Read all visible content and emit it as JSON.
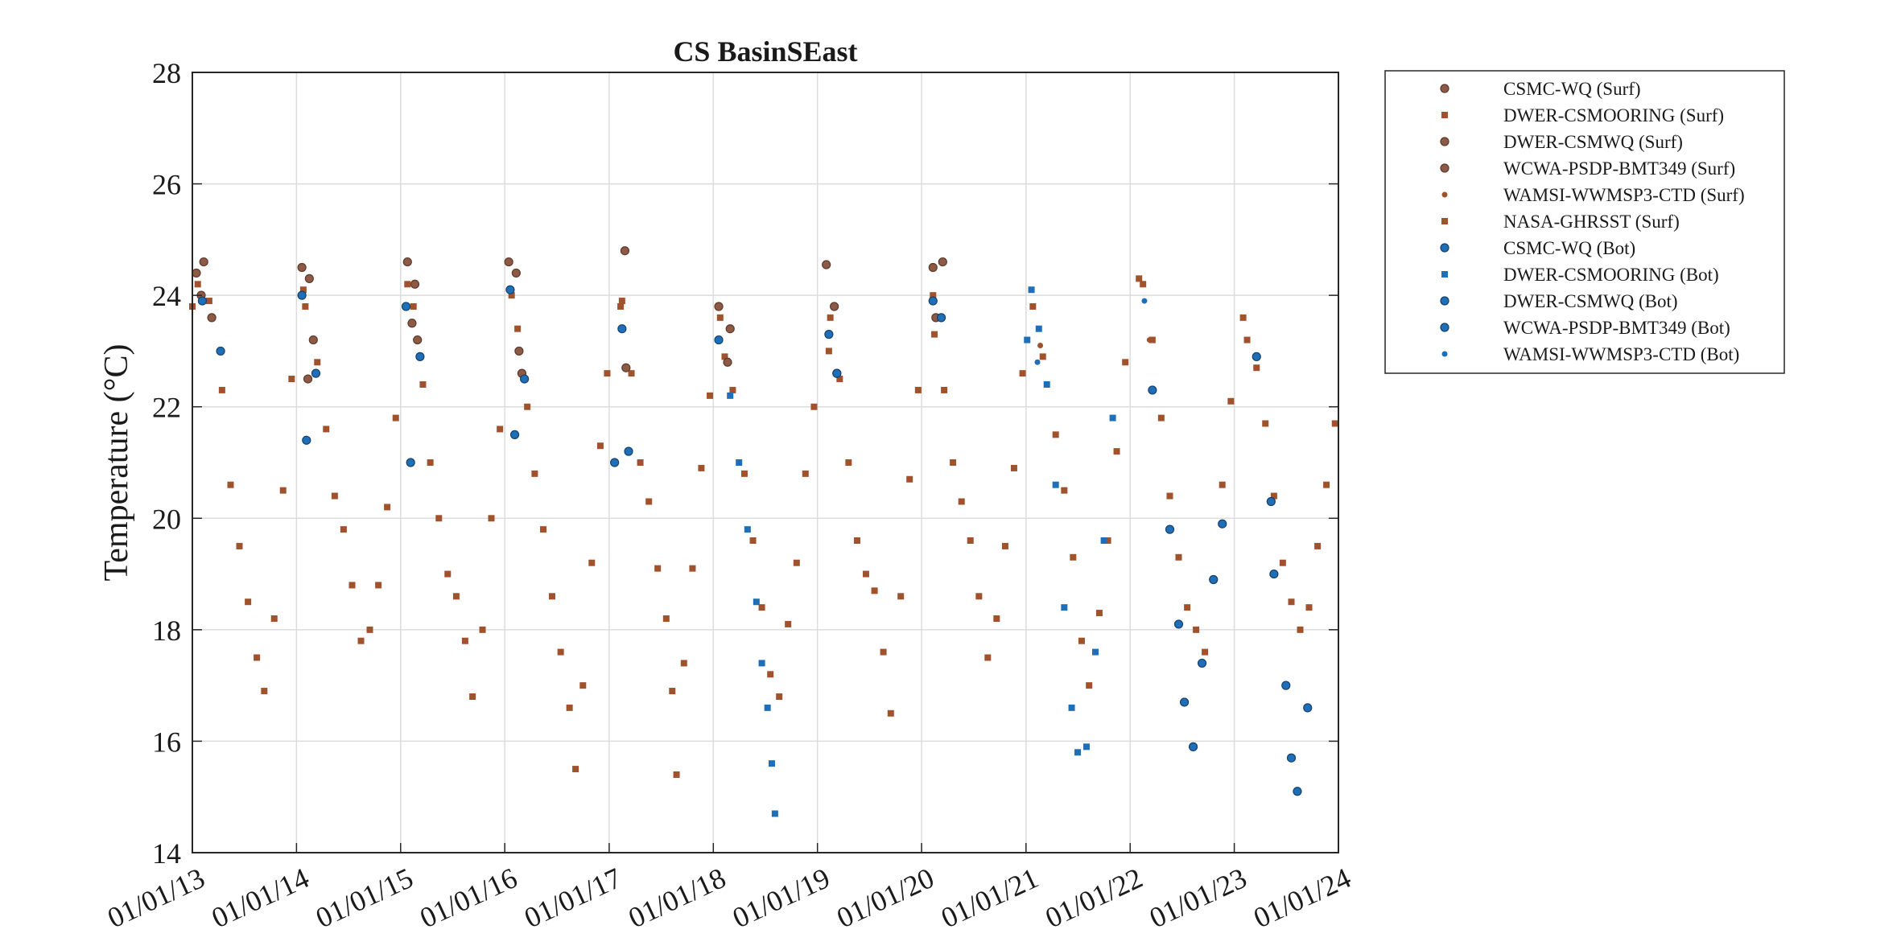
{
  "chart_data": {
    "type": "scatter",
    "title": "CS BasinSEast",
    "ylabel": "Temperature (°C)",
    "xlabel": "",
    "x_type": "date",
    "xlim": [
      "2013-01-01",
      "2024-01-01"
    ],
    "ylim": [
      14,
      28
    ],
    "x_ticks": [
      "2013-01-01",
      "2014-01-01",
      "2015-01-01",
      "2016-01-01",
      "2017-01-01",
      "2018-01-01",
      "2019-01-01",
      "2020-01-01",
      "2021-01-01",
      "2022-01-01",
      "2023-01-01",
      "2024-01-01"
    ],
    "x_tick_labels": [
      "01/01/13",
      "01/01/14",
      "01/01/15",
      "01/01/16",
      "01/01/17",
      "01/01/18",
      "01/01/19",
      "01/01/20",
      "01/01/21",
      "01/01/22",
      "01/01/23",
      "01/01/24"
    ],
    "y_ticks": [
      14,
      16,
      18,
      20,
      22,
      24,
      26,
      28
    ],
    "y_tick_labels": [
      "14",
      "16",
      "18",
      "20",
      "22",
      "24",
      "26",
      "28"
    ],
    "grid": true,
    "legend_position": "outside-top-right",
    "series": [
      {
        "name": "CSMC-WQ (Surf)",
        "color": "#8c5a45",
        "marker": "circle",
        "points": [
          [
            "2013-01-15",
            24.4
          ],
          [
            "2013-02-10",
            24.6
          ],
          [
            "2013-03-10",
            23.6
          ],
          [
            "2014-01-20",
            24.5
          ],
          [
            "2014-02-15",
            24.3
          ],
          [
            "2015-01-25",
            24.6
          ],
          [
            "2015-02-20",
            24.2
          ],
          [
            "2016-01-15",
            24.6
          ],
          [
            "2016-02-10",
            24.4
          ],
          [
            "2017-02-25",
            24.8
          ],
          [
            "2018-01-20",
            23.8
          ],
          [
            "2018-03-01",
            23.4
          ],
          [
            "2019-02-01",
            24.55
          ],
          [
            "2019-03-01",
            23.8
          ],
          [
            "2020-02-10",
            24.5
          ],
          [
            "2020-03-15",
            24.6
          ]
        ]
      },
      {
        "name": "DWER-CSMOORING (Surf)",
        "color": "#a0522d",
        "marker": "square",
        "points": [
          [
            "2013-01-01",
            23.8
          ],
          [
            "2013-03-01",
            23.9
          ],
          [
            "2013-04-15",
            22.3
          ],
          [
            "2013-05-15",
            20.6
          ],
          [
            "2013-06-15",
            19.5
          ],
          [
            "2013-07-15",
            18.5
          ],
          [
            "2013-08-15",
            17.5
          ],
          [
            "2013-09-10",
            16.9
          ],
          [
            "2013-10-15",
            18.2
          ],
          [
            "2013-11-15",
            20.5
          ],
          [
            "2013-12-15",
            22.5
          ],
          [
            "2014-02-01",
            23.8
          ],
          [
            "2014-03-15",
            22.8
          ],
          [
            "2014-04-15",
            21.6
          ],
          [
            "2014-05-15",
            20.4
          ],
          [
            "2014-06-15",
            19.8
          ],
          [
            "2014-07-15",
            18.8
          ],
          [
            "2014-08-15",
            17.8
          ],
          [
            "2014-09-15",
            18.0
          ],
          [
            "2014-10-15",
            18.8
          ],
          [
            "2014-11-15",
            20.2
          ],
          [
            "2014-12-15",
            21.8
          ],
          [
            "2015-02-15",
            23.8
          ],
          [
            "2015-03-20",
            22.4
          ],
          [
            "2015-04-15",
            21.0
          ],
          [
            "2015-05-15",
            20.0
          ],
          [
            "2015-06-15",
            19.0
          ],
          [
            "2015-07-15",
            18.6
          ],
          [
            "2015-08-15",
            17.8
          ],
          [
            "2015-09-10",
            16.8
          ],
          [
            "2015-10-15",
            18.0
          ],
          [
            "2015-11-15",
            20.0
          ],
          [
            "2015-12-15",
            21.6
          ],
          [
            "2016-02-15",
            23.4
          ],
          [
            "2016-03-20",
            22.0
          ],
          [
            "2016-04-15",
            20.8
          ],
          [
            "2016-05-15",
            19.8
          ],
          [
            "2016-06-15",
            18.6
          ],
          [
            "2016-07-15",
            17.6
          ],
          [
            "2016-08-15",
            16.6
          ],
          [
            "2016-09-05",
            15.5
          ],
          [
            "2016-10-01",
            17.0
          ],
          [
            "2016-11-01",
            19.2
          ],
          [
            "2016-12-01",
            21.3
          ],
          [
            "2016-12-25",
            22.6
          ],
          [
            "2017-02-10",
            23.8
          ],
          [
            "2017-03-20",
            22.6
          ],
          [
            "2017-04-20",
            21.0
          ],
          [
            "2017-05-20",
            20.3
          ],
          [
            "2017-06-20",
            19.1
          ],
          [
            "2017-07-20",
            18.2
          ],
          [
            "2017-08-10",
            16.9
          ],
          [
            "2017-08-25",
            15.4
          ],
          [
            "2017-09-20",
            17.4
          ],
          [
            "2017-10-20",
            19.1
          ],
          [
            "2017-11-20",
            20.9
          ],
          [
            "2017-12-20",
            22.2
          ],
          [
            "2018-02-10",
            22.9
          ],
          [
            "2018-03-10",
            22.3
          ],
          [
            "2018-04-20",
            20.8
          ],
          [
            "2018-05-20",
            19.6
          ],
          [
            "2018-06-20",
            18.4
          ],
          [
            "2018-07-20",
            17.2
          ],
          [
            "2018-08-20",
            16.8
          ],
          [
            "2018-09-20",
            18.1
          ],
          [
            "2018-10-20",
            19.2
          ],
          [
            "2018-11-20",
            20.8
          ],
          [
            "2018-12-20",
            22.0
          ],
          [
            "2019-02-10",
            23.0
          ],
          [
            "2019-03-20",
            22.5
          ],
          [
            "2019-04-20",
            21.0
          ],
          [
            "2019-05-20",
            19.6
          ],
          [
            "2019-06-20",
            19.0
          ],
          [
            "2019-07-20",
            18.7
          ],
          [
            "2019-08-20",
            17.6
          ],
          [
            "2019-09-15",
            16.5
          ],
          [
            "2019-10-20",
            18.6
          ],
          [
            "2019-11-20",
            20.7
          ],
          [
            "2019-12-20",
            22.3
          ],
          [
            "2020-02-15",
            23.3
          ],
          [
            "2020-03-20",
            22.3
          ],
          [
            "2020-04-20",
            21.0
          ],
          [
            "2020-05-20",
            20.3
          ],
          [
            "2020-06-20",
            19.6
          ],
          [
            "2020-07-20",
            18.6
          ],
          [
            "2020-08-20",
            17.5
          ],
          [
            "2020-09-20",
            18.2
          ],
          [
            "2020-10-20",
            19.5
          ],
          [
            "2020-11-20",
            20.9
          ],
          [
            "2020-12-20",
            22.6
          ],
          [
            "2021-03-01",
            22.9
          ],
          [
            "2021-04-15",
            21.5
          ],
          [
            "2021-05-15",
            20.5
          ],
          [
            "2021-06-15",
            19.3
          ],
          [
            "2021-07-15",
            17.8
          ],
          [
            "2021-08-10",
            17.0
          ],
          [
            "2021-09-15",
            18.3
          ],
          [
            "2021-10-15",
            19.6
          ],
          [
            "2021-11-15",
            21.2
          ],
          [
            "2021-12-15",
            22.8
          ],
          [
            "2022-02-15",
            24.2
          ],
          [
            "2022-03-20",
            23.2
          ],
          [
            "2022-04-20",
            21.8
          ],
          [
            "2022-05-20",
            20.4
          ],
          [
            "2022-06-20",
            19.3
          ],
          [
            "2022-07-20",
            18.4
          ],
          [
            "2022-08-20",
            18.0
          ],
          [
            "2022-09-20",
            17.6
          ],
          [
            "2022-10-20",
            18.9
          ],
          [
            "2022-11-20",
            20.6
          ],
          [
            "2022-12-20",
            22.1
          ],
          [
            "2023-02-15",
            23.2
          ],
          [
            "2023-03-20",
            22.7
          ],
          [
            "2023-04-20",
            21.7
          ],
          [
            "2023-05-20",
            20.4
          ],
          [
            "2023-06-20",
            19.2
          ],
          [
            "2023-07-20",
            18.5
          ],
          [
            "2023-08-20",
            18.0
          ],
          [
            "2023-09-20",
            18.4
          ],
          [
            "2023-10-20",
            19.5
          ],
          [
            "2023-11-20",
            20.6
          ],
          [
            "2023-12-20",
            21.7
          ]
        ]
      },
      {
        "name": "DWER-CSMWQ (Surf)",
        "color": "#8c5a45",
        "marker": "circle",
        "points": [
          [
            "2013-02-01",
            24.0
          ],
          [
            "2014-03-01",
            23.2
          ],
          [
            "2015-03-01",
            23.2
          ],
          [
            "2016-03-01",
            22.6
          ],
          [
            "2017-03-01",
            22.7
          ],
          [
            "2018-02-20",
            22.8
          ],
          [
            "2019-03-10",
            22.6
          ],
          [
            "2020-02-20",
            23.6
          ]
        ]
      },
      {
        "name": "WCWA-PSDP-BMT349 (Surf)",
        "color": "#8c5a45",
        "marker": "circle",
        "points": [
          [
            "2014-02-10",
            22.5
          ],
          [
            "2015-02-10",
            23.5
          ],
          [
            "2016-02-20",
            23.0
          ]
        ]
      },
      {
        "name": "WAMSI-WWMSP3-CTD (Surf)",
        "color": "#a0522d",
        "marker": "dot",
        "points": [
          [
            "2021-02-20",
            23.1
          ],
          [
            "2022-03-10",
            23.2
          ]
        ]
      },
      {
        "name": "NASA-GHRSST (Surf)",
        "color": "#a0522d",
        "marker": "square",
        "points": [
          [
            "2013-01-20",
            24.2
          ],
          [
            "2014-01-25",
            24.1
          ],
          [
            "2015-01-25",
            24.2
          ],
          [
            "2016-01-25",
            24.0
          ],
          [
            "2017-02-15",
            23.9
          ],
          [
            "2018-01-25",
            23.6
          ],
          [
            "2019-02-15",
            23.6
          ],
          [
            "2020-02-10",
            24.0
          ],
          [
            "2021-01-25",
            23.8
          ],
          [
            "2022-02-01",
            24.3
          ],
          [
            "2023-02-01",
            23.6
          ]
        ]
      },
      {
        "name": "CSMC-WQ (Bot)",
        "color": "#1f6fb8",
        "marker": "circle",
        "points": [
          [
            "2013-02-05",
            23.9
          ],
          [
            "2014-01-20",
            24.0
          ],
          [
            "2015-01-20",
            23.8
          ],
          [
            "2016-01-20",
            24.1
          ],
          [
            "2017-02-15",
            23.4
          ],
          [
            "2018-01-20",
            23.2
          ],
          [
            "2019-02-10",
            23.3
          ],
          [
            "2020-02-10",
            23.9
          ]
        ]
      },
      {
        "name": "DWER-CSMOORING (Bot)",
        "color": "#1f6fb8",
        "marker": "square",
        "points": [
          [
            "2018-03-01",
            22.2
          ],
          [
            "2018-04-01",
            21.0
          ],
          [
            "2018-05-01",
            19.8
          ],
          [
            "2018-06-01",
            18.5
          ],
          [
            "2018-06-20",
            17.4
          ],
          [
            "2018-07-10",
            16.6
          ],
          [
            "2018-07-25",
            15.6
          ],
          [
            "2018-08-05",
            14.7
          ],
          [
            "2021-01-05",
            23.2
          ],
          [
            "2021-01-20",
            24.1
          ],
          [
            "2021-02-15",
            23.4
          ],
          [
            "2021-03-15",
            22.4
          ],
          [
            "2021-04-15",
            20.6
          ],
          [
            "2021-05-15",
            18.4
          ],
          [
            "2021-06-10",
            16.6
          ],
          [
            "2021-07-01",
            15.8
          ],
          [
            "2021-08-01",
            15.9
          ],
          [
            "2021-09-01",
            17.6
          ],
          [
            "2021-10-01",
            19.6
          ],
          [
            "2021-11-01",
            21.8
          ]
        ]
      },
      {
        "name": "DWER-CSMWQ (Bot)",
        "color": "#1f6fb8",
        "marker": "circle",
        "points": [
          [
            "2013-04-10",
            23.0
          ],
          [
            "2014-03-10",
            22.6
          ],
          [
            "2015-03-10",
            22.9
          ],
          [
            "2016-03-10",
            22.5
          ],
          [
            "2017-03-10",
            21.2
          ],
          [
            "2019-03-10",
            22.6
          ],
          [
            "2020-03-10",
            23.6
          ],
          [
            "2022-03-20",
            22.3
          ],
          [
            "2022-05-20",
            19.8
          ],
          [
            "2022-06-20",
            18.1
          ],
          [
            "2022-07-10",
            16.7
          ],
          [
            "2022-08-10",
            15.9
          ],
          [
            "2022-09-10",
            17.4
          ],
          [
            "2022-10-20",
            18.9
          ],
          [
            "2022-11-20",
            19.9
          ],
          [
            "2023-03-20",
            22.9
          ],
          [
            "2023-05-10",
            20.3
          ],
          [
            "2023-05-20",
            19.0
          ],
          [
            "2023-07-01",
            17.0
          ],
          [
            "2023-07-20",
            15.7
          ],
          [
            "2023-08-10",
            15.1
          ],
          [
            "2023-09-15",
            16.6
          ]
        ]
      },
      {
        "name": "WCWA-PSDP-BMT349 (Bot)",
        "color": "#1f6fb8",
        "marker": "circle",
        "points": [
          [
            "2014-02-05",
            21.4
          ],
          [
            "2015-02-05",
            21.0
          ],
          [
            "2016-02-05",
            21.5
          ],
          [
            "2017-01-20",
            21.0
          ]
        ]
      },
      {
        "name": "WAMSI-WWMSP3-CTD (Bot)",
        "color": "#1f6fb8",
        "marker": "dot",
        "points": [
          [
            "2021-02-10",
            22.8
          ],
          [
            "2022-02-20",
            23.9
          ]
        ]
      }
    ]
  }
}
